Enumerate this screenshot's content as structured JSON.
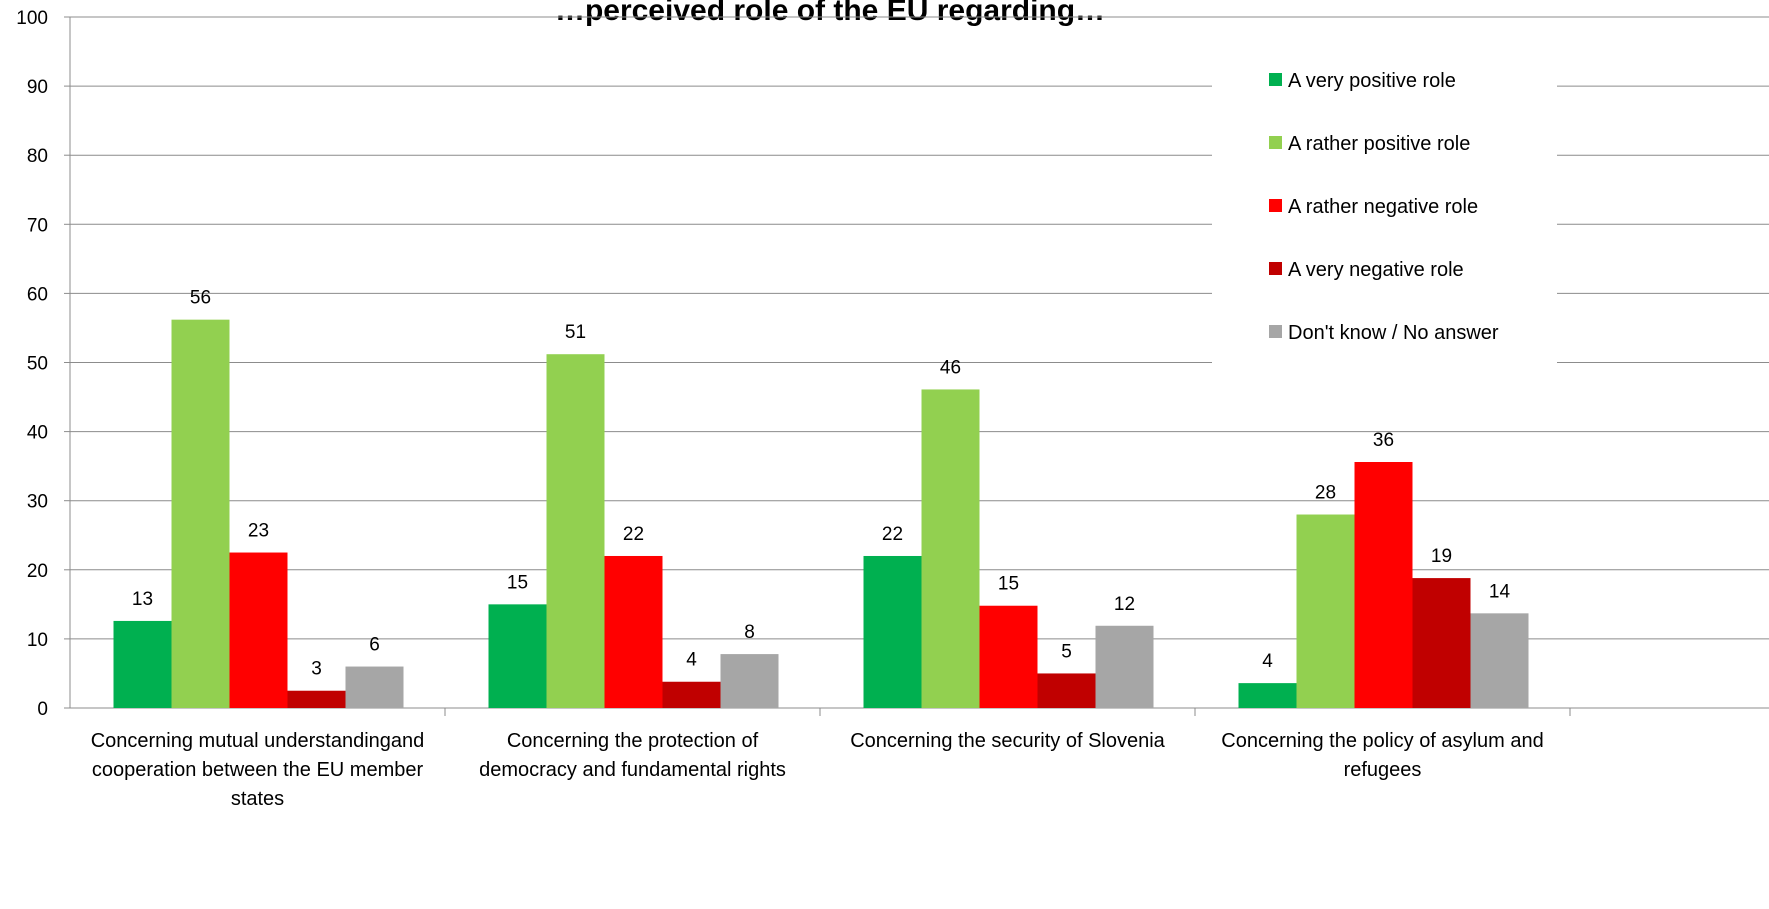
{
  "chart_data": {
    "type": "bar",
    "title": "…perceived role of the EU regarding…",
    "categories": [
      [
        "Concerning mutual understandingand",
        "cooperation between the EU member",
        "states"
      ],
      [
        "Concerning the protection of",
        "democracy and fundamental rights"
      ],
      [
        "Concerning the security of Slovenia"
      ],
      [
        "Concerning the policy of asylum and",
        "refugees"
      ]
    ],
    "series": [
      {
        "name": "A very positive role",
        "color": "#00b050",
        "values": [
          13,
          15,
          22,
          4
        ]
      },
      {
        "name": "A rather positive role",
        "color": "#92d050",
        "values": [
          56,
          51,
          46,
          28
        ]
      },
      {
        "name": "A rather negative role",
        "color": "#ff0000",
        "values": [
          23,
          22,
          15,
          36
        ]
      },
      {
        "name": "A very negative role",
        "color": "#c00000",
        "values": [
          3,
          4,
          5,
          19
        ]
      },
      {
        "name": "Don't know / No answer",
        "color": "#a6a6a6",
        "values": [
          6,
          8,
          12,
          14
        ]
      }
    ],
    "bar_heights": [
      [
        12.6,
        15,
        22,
        3.6
      ],
      [
        56.2,
        51.2,
        46.1,
        28
      ],
      [
        22.5,
        22,
        14.8,
        35.6
      ],
      [
        2.5,
        3.8,
        5,
        18.8
      ],
      [
        6,
        7.8,
        11.9,
        13.7
      ]
    ],
    "ylim": [
      0,
      100
    ],
    "yticks": [
      0,
      10,
      20,
      30,
      40,
      50,
      60,
      70,
      80,
      90,
      100
    ],
    "grid": true,
    "legend_position": "top-right"
  }
}
